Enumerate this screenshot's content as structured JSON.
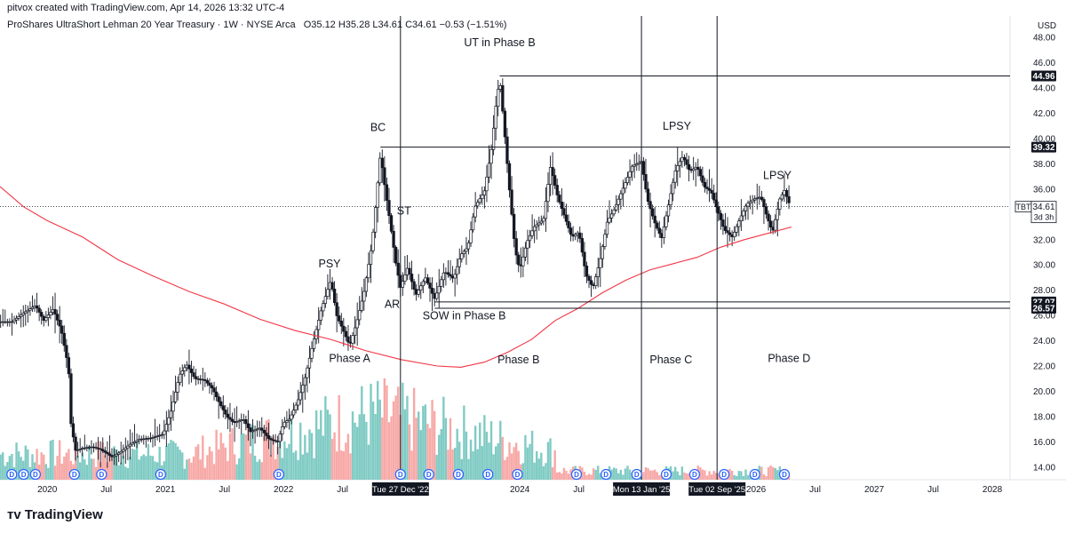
{
  "header": {
    "created": "pitvox created with TradingView.com, Apr 14, 2026 13:32 UTC-4",
    "instrument": "ProShares UltraShort Lehman 20 Year Treasury · 1W · NYSE Arca",
    "ohlc": "O35.12  H35.28  L34.61  C34.61  −0.53 (−1.51%)"
  },
  "footer": {
    "brand": "TradingView",
    "logo_icon": "tradingview-logo-icon"
  },
  "colors": {
    "up": "#26a69a",
    "down": "#ef5350",
    "candle": "#131722",
    "ma": "#f23645",
    "vol_up": "#80cbc4",
    "vol_down": "#f7a9a7",
    "dividend": "#2962ff",
    "line": "#131722"
  },
  "chart_data": {
    "type": "candlestick",
    "currency": "USD",
    "symbol": "TBT",
    "last_price": "34.61",
    "countdown": "3d 3h",
    "ylim": [
      13,
      49
    ],
    "y_ticks": [
      "14.00",
      "16.00",
      "18.00",
      "20.00",
      "22.00",
      "24.00",
      "26.00",
      "28.00",
      "30.00",
      "32.00",
      "34.00",
      "36.00",
      "38.00",
      "40.00",
      "42.00",
      "44.00",
      "46.00",
      "48.00"
    ],
    "x_ticks": [
      {
        "label": "2020",
        "t": 2020.0
      },
      {
        "label": "Jul",
        "t": 2020.5
      },
      {
        "label": "2021",
        "t": 2021.0
      },
      {
        "label": "Jul",
        "t": 2021.5
      },
      {
        "label": "2022",
        "t": 2022.0
      },
      {
        "label": "Jul",
        "t": 2022.5
      },
      {
        "label": "2024",
        "t": 2024.0
      },
      {
        "label": "Jul",
        "t": 2024.5
      },
      {
        "label": "2026",
        "t": 2026.0
      },
      {
        "label": "Jul",
        "t": 2026.5
      },
      {
        "label": "2027",
        "t": 2027.0
      },
      {
        "label": "Jul",
        "t": 2027.5
      },
      {
        "label": "2028",
        "t": 2028.0
      }
    ],
    "x_markers": [
      {
        "label": "Tue 27 Dec '22",
        "t": 2022.99
      },
      {
        "label": "Mon 13 Jan '25",
        "t": 2025.03
      },
      {
        "label": "Tue 02 Sep '25",
        "t": 2025.67
      }
    ],
    "price_levels": [
      {
        "label": "44.96",
        "value": 44.96,
        "t_start": 2023.83
      },
      {
        "label": "39.32",
        "value": 39.32,
        "t_start": 2022.82
      },
      {
        "label": "27.07",
        "value": 27.07,
        "t_start": 2023.28
      },
      {
        "label": "26.57",
        "value": 26.57,
        "t_start": 2023.28
      }
    ],
    "annotations": [
      {
        "text": "UT in Phase B",
        "t": 2023.83,
        "y": 47.3
      },
      {
        "text": "BC",
        "t": 2022.8,
        "y": 40.6
      },
      {
        "text": "LPSY",
        "t": 2025.33,
        "y": 40.7
      },
      {
        "text": "LPSY",
        "t": 2026.18,
        "y": 36.8
      },
      {
        "text": "ST",
        "t": 2023.02,
        "y": 34.0
      },
      {
        "text": "PSY",
        "t": 2022.39,
        "y": 29.8
      },
      {
        "text": "AR",
        "t": 2022.92,
        "y": 26.6
      },
      {
        "text": "SOW in Phase B",
        "t": 2023.53,
        "y": 25.7
      },
      {
        "text": "Phase A",
        "t": 2022.56,
        "y": 22.3
      },
      {
        "text": "Phase B",
        "t": 2023.99,
        "y": 22.2
      },
      {
        "text": "Phase C",
        "t": 2025.28,
        "y": 22.2
      },
      {
        "text": "Phase D",
        "t": 2026.28,
        "y": 22.3
      }
    ],
    "price_path": [
      [
        2019.7,
        25.5
      ],
      [
        2019.8,
        26.2
      ],
      [
        2019.9,
        26.8
      ],
      [
        2019.97,
        25.6
      ],
      [
        2020.05,
        26.5
      ],
      [
        2020.12,
        24.8
      ],
      [
        2020.18,
        21.8
      ],
      [
        2020.2,
        17.5
      ],
      [
        2020.24,
        15.3
      ],
      [
        2020.3,
        15.5
      ],
      [
        2020.38,
        15.6
      ],
      [
        2020.45,
        15.4
      ],
      [
        2020.55,
        14.8
      ],
      [
        2020.62,
        15.2
      ],
      [
        2020.7,
        15.8
      ],
      [
        2020.78,
        16.2
      ],
      [
        2020.88,
        16.3
      ],
      [
        2020.98,
        16.6
      ],
      [
        2021.05,
        18.5
      ],
      [
        2021.12,
        21.3
      ],
      [
        2021.18,
        22.1
      ],
      [
        2021.25,
        21.0
      ],
      [
        2021.33,
        20.9
      ],
      [
        2021.4,
        20.2
      ],
      [
        2021.45,
        19.2
      ],
      [
        2021.52,
        18.0
      ],
      [
        2021.58,
        17.5
      ],
      [
        2021.66,
        17.8
      ],
      [
        2021.72,
        16.8
      ],
      [
        2021.8,
        17.1
      ],
      [
        2021.88,
        16.2
      ],
      [
        2021.95,
        16.0
      ],
      [
        2022.0,
        17.5
      ],
      [
        2022.05,
        17.8
      ],
      [
        2022.12,
        19.2
      ],
      [
        2022.18,
        21.0
      ],
      [
        2022.25,
        23.8
      ],
      [
        2022.32,
        26.5
      ],
      [
        2022.4,
        28.8
      ],
      [
        2022.45,
        26.0
      ],
      [
        2022.52,
        24.5
      ],
      [
        2022.56,
        23.6
      ],
      [
        2022.62,
        25.5
      ],
      [
        2022.68,
        27.8
      ],
      [
        2022.75,
        31.7
      ],
      [
        2022.82,
        38.8
      ],
      [
        2022.86,
        36.0
      ],
      [
        2022.9,
        33.5
      ],
      [
        2022.95,
        30.2
      ],
      [
        2022.99,
        28.2
      ],
      [
        2023.05,
        29.8
      ],
      [
        2023.12,
        27.6
      ],
      [
        2023.2,
        29.0
      ],
      [
        2023.28,
        27.3
      ],
      [
        2023.36,
        29.5
      ],
      [
        2023.44,
        28.9
      ],
      [
        2023.5,
        30.8
      ],
      [
        2023.56,
        31.4
      ],
      [
        2023.62,
        34.6
      ],
      [
        2023.7,
        35.8
      ],
      [
        2023.76,
        39.2
      ],
      [
        2023.8,
        42.8
      ],
      [
        2023.83,
        44.8
      ],
      [
        2023.87,
        40.6
      ],
      [
        2023.91,
        36.2
      ],
      [
        2023.96,
        31.2
      ],
      [
        2024.0,
        29.6
      ],
      [
        2024.06,
        31.8
      ],
      [
        2024.12,
        33.0
      ],
      [
        2024.2,
        33.6
      ],
      [
        2024.26,
        37.8
      ],
      [
        2024.32,
        35.4
      ],
      [
        2024.38,
        33.8
      ],
      [
        2024.44,
        32.2
      ],
      [
        2024.5,
        32.6
      ],
      [
        2024.56,
        29.2
      ],
      [
        2024.62,
        28.2
      ],
      [
        2024.68,
        30.4
      ],
      [
        2024.74,
        33.4
      ],
      [
        2024.8,
        34.4
      ],
      [
        2024.88,
        36.2
      ],
      [
        2024.95,
        37.8
      ],
      [
        2025.03,
        38.2
      ],
      [
        2025.08,
        35.2
      ],
      [
        2025.14,
        33.4
      ],
      [
        2025.2,
        32.1
      ],
      [
        2025.26,
        34.8
      ],
      [
        2025.32,
        37.6
      ],
      [
        2025.38,
        38.6
      ],
      [
        2025.44,
        37.4
      ],
      [
        2025.5,
        37.8
      ],
      [
        2025.56,
        36.2
      ],
      [
        2025.62,
        35.8
      ],
      [
        2025.67,
        34.4
      ],
      [
        2025.73,
        32.8
      ],
      [
        2025.8,
        32.2
      ],
      [
        2025.86,
        33.6
      ],
      [
        2025.92,
        34.8
      ],
      [
        2025.98,
        35.2
      ],
      [
        2026.04,
        35.4
      ],
      [
        2026.1,
        33.6
      ],
      [
        2026.14,
        32.6
      ],
      [
        2026.2,
        35.2
      ],
      [
        2026.24,
        35.9
      ],
      [
        2026.29,
        34.61
      ]
    ],
    "ma_path": [
      [
        2019.6,
        36.2
      ],
      [
        2019.8,
        34.6
      ],
      [
        2020.0,
        33.5
      ],
      [
        2020.3,
        32.2
      ],
      [
        2020.6,
        30.4
      ],
      [
        2020.9,
        29.1
      ],
      [
        2021.2,
        27.9
      ],
      [
        2021.5,
        26.9
      ],
      [
        2021.8,
        25.7
      ],
      [
        2022.1,
        24.8
      ],
      [
        2022.4,
        24.1
      ],
      [
        2022.7,
        23.2
      ],
      [
        2023.0,
        22.5
      ],
      [
        2023.3,
        22.0
      ],
      [
        2023.5,
        21.9
      ],
      [
        2023.7,
        22.3
      ],
      [
        2023.9,
        23.1
      ],
      [
        2024.1,
        24.1
      ],
      [
        2024.3,
        25.6
      ],
      [
        2024.5,
        26.6
      ],
      [
        2024.7,
        27.8
      ],
      [
        2024.9,
        28.8
      ],
      [
        2025.1,
        29.6
      ],
      [
        2025.3,
        30.1
      ],
      [
        2025.5,
        30.6
      ],
      [
        2025.7,
        31.4
      ],
      [
        2025.9,
        32.0
      ],
      [
        2026.1,
        32.5
      ],
      [
        2026.3,
        33.0
      ]
    ],
    "dividend_markers": {
      "label": "D",
      "t": [
        2019.7,
        2019.8,
        2019.9,
        2020.23,
        2020.46,
        2020.96,
        2021.96,
        2022.99,
        2023.23,
        2023.48,
        2023.73,
        2023.98,
        2024.48,
        2024.73,
        2024.99,
        2025.24,
        2025.48,
        2025.73,
        2025.99,
        2026.24
      ]
    },
    "volume_scale_max": 100
  }
}
